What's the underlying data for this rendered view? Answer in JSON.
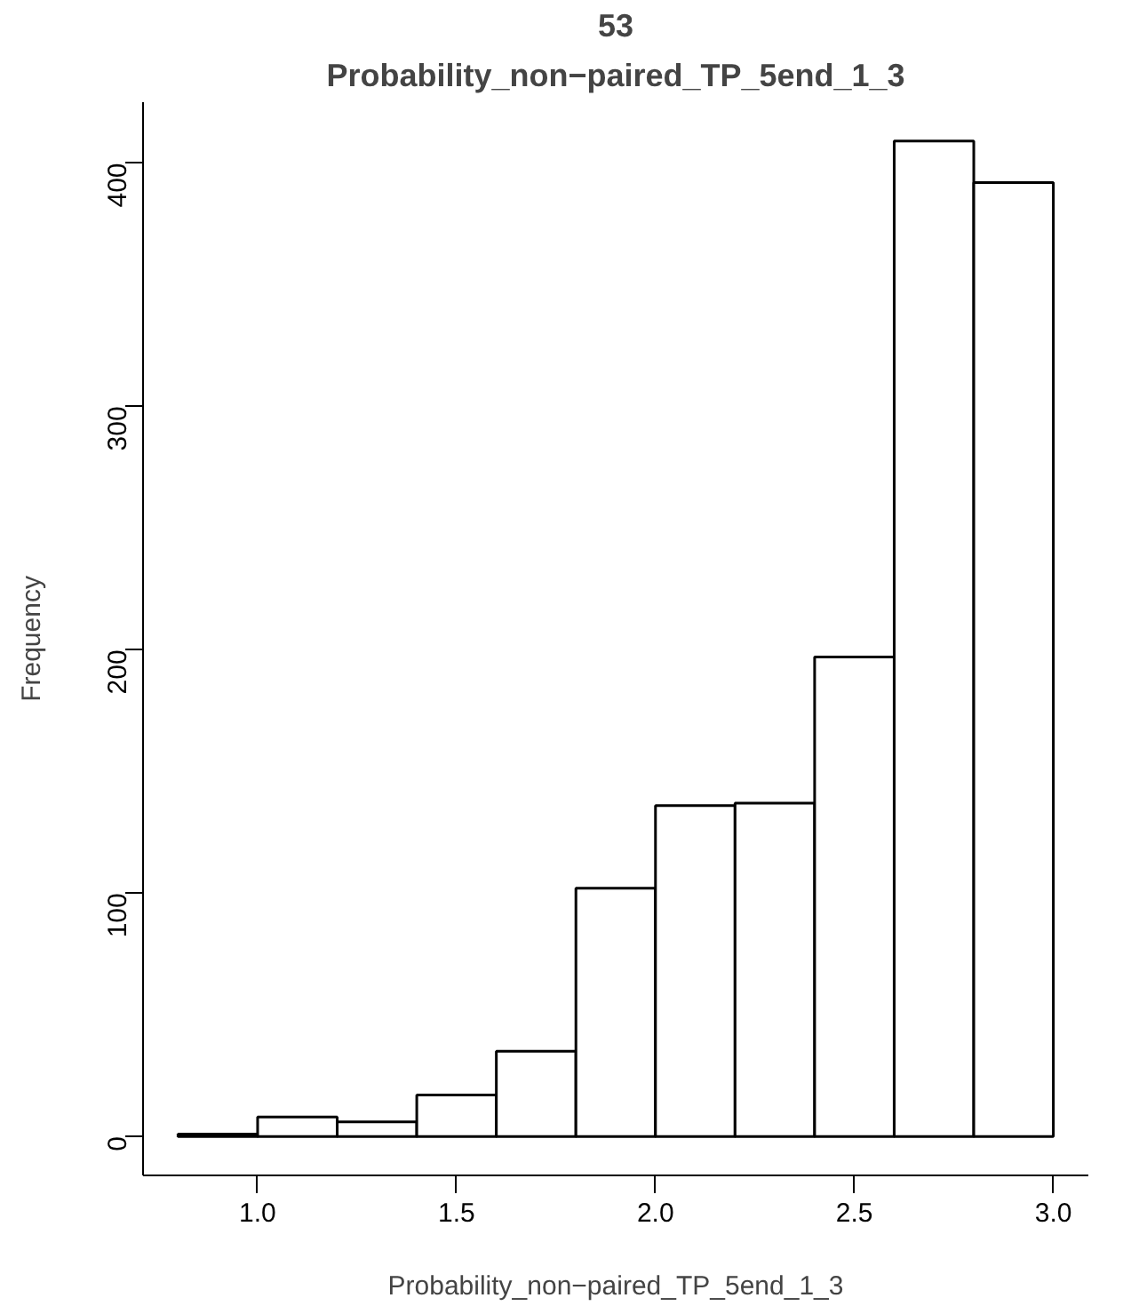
{
  "chart_data": {
    "type": "histogram",
    "title": "53",
    "subtitle": "Probability_non−paired_TP_5end_1_3",
    "xlabel": "Probability_non−paired_TP_5end_1_3",
    "ylabel": "Frequency",
    "bins": [
      0.8,
      1.0,
      1.2,
      1.4,
      1.6,
      1.8,
      2.0,
      2.2,
      2.4,
      2.6,
      2.8,
      3.0
    ],
    "values": [
      1,
      8,
      6,
      17,
      35,
      102,
      136,
      137,
      197,
      409,
      392
    ],
    "color": "#ffffff",
    "xlim": [
      0.712,
      3.088
    ],
    "ylim": [
      -16,
      425
    ],
    "xticks": [
      {
        "value": 1.0,
        "label": "1.0"
      },
      {
        "value": 1.5,
        "label": "1.5"
      },
      {
        "value": 2.0,
        "label": "2.0"
      },
      {
        "value": 2.5,
        "label": "2.5"
      },
      {
        "value": 3.0,
        "label": "3.0"
      }
    ],
    "yticks": [
      0,
      100,
      200,
      300,
      400
    ],
    "grid": false
  }
}
